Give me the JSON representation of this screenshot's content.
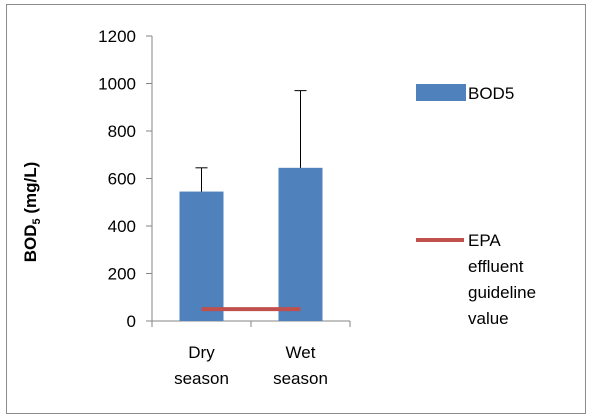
{
  "chart_data": {
    "type": "bar",
    "categories": [
      [
        "Dry",
        "season"
      ],
      [
        "Wet",
        "season"
      ]
    ],
    "ylabel_main": "BOD",
    "ylabel_sub": "5",
    "ylabel_tail": " (mg/L)",
    "ylim": [
      0,
      1200
    ],
    "yticks": [
      0,
      200,
      400,
      600,
      800,
      1000,
      1200
    ],
    "grid": false,
    "legend_position": "right",
    "series": [
      {
        "name": "BOD5",
        "kind": "bar",
        "color": "#4f81bd",
        "values": [
          545,
          645
        ],
        "error_upper": [
          100,
          325
        ]
      },
      {
        "name": [
          "EPA",
          "effluent",
          "guideline",
          "value"
        ],
        "kind": "line",
        "color": "#c0504d",
        "value": 50
      }
    ]
  }
}
